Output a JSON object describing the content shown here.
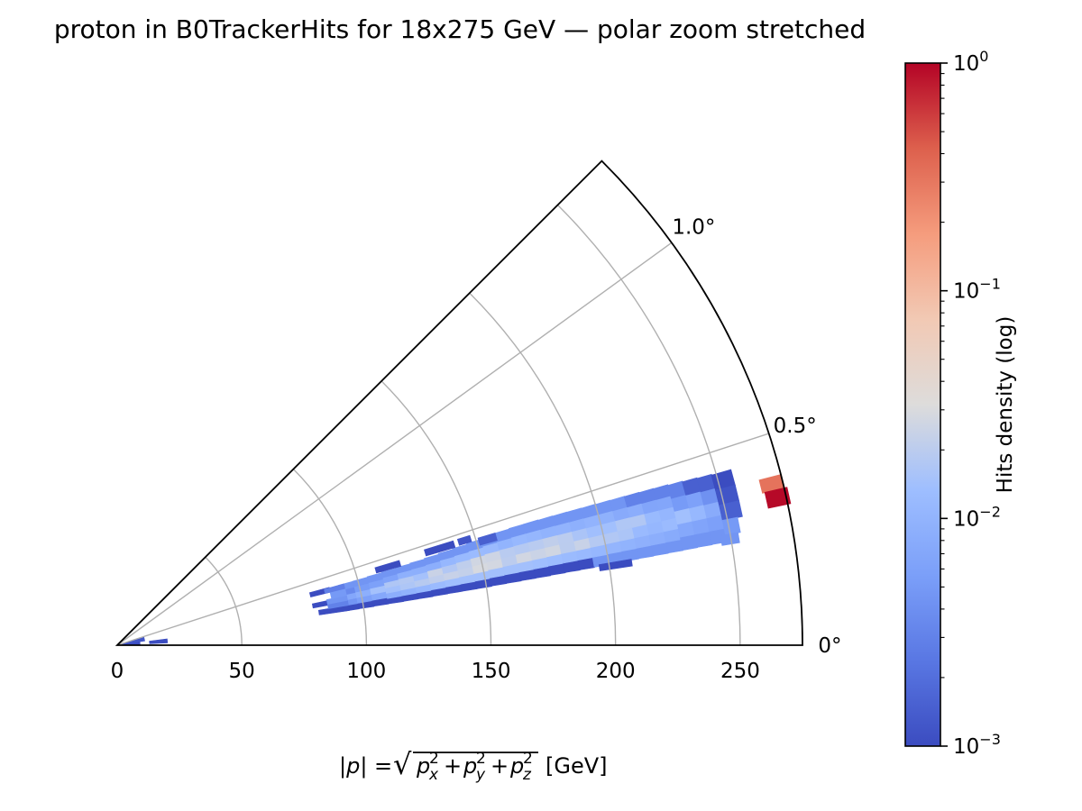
{
  "figure": {
    "background": "#ffffff"
  },
  "chart_data": {
    "type": "heatmap",
    "projection": "polar-wedge-stretched",
    "title": "proton in B0TrackerHits for 18x275 GeV — polar zoom stretched",
    "xlabel": {
      "prefix": "|p|",
      "equals": "=",
      "sqrt_terms": [
        [
          "p",
          "x",
          "2"
        ],
        [
          "p",
          "y",
          "2"
        ],
        [
          "p",
          "z",
          "2"
        ]
      ],
      "plus": "+",
      "unit": "[GeV]"
    },
    "r_axis": {
      "ticks": [
        0,
        50,
        100,
        150,
        200,
        250
      ],
      "max": 275,
      "unit": "GeV"
    },
    "theta_axis": {
      "ticks_deg": [
        0,
        0.5,
        1.0
      ],
      "tick_labels": [
        "0°",
        "0.5°",
        "1.0°"
      ],
      "max_deg": 1.25,
      "geometric_stretch": 36
    },
    "colorbar": {
      "label": "Hits density (log)",
      "scale": "log",
      "vmin": 0.001,
      "vmax": 1,
      "tick_exponents": [
        0,
        -1,
        -2,
        -3
      ],
      "colormap": "coolwarm",
      "stops": [
        [
          0.0,
          "#3b4cc0"
        ],
        [
          0.125,
          "#5977e3"
        ],
        [
          0.25,
          "#7b9ff9"
        ],
        [
          0.375,
          "#9ebeff"
        ],
        [
          0.5,
          "#dddcdb"
        ],
        [
          0.625,
          "#f2c9b4"
        ],
        [
          0.75,
          "#f59c7d"
        ],
        [
          0.875,
          "#dd604d"
        ],
        [
          1.0,
          "#b40426"
        ]
      ]
    },
    "heatmap": {
      "comment_units": "streak columns: r in GeV, theta in data degrees, density in normalized hits",
      "r_start": 80,
      "r_bin": 6,
      "theta_bin": 0.034,
      "theta_bottom": [
        0.235,
        0.236,
        0.237,
        0.238,
        0.24,
        0.241,
        0.242,
        0.243,
        0.245,
        0.246,
        0.247,
        0.248,
        0.25,
        0.251,
        0.252,
        0.253,
        0.255,
        0.256,
        0.257,
        0.258,
        0.26,
        0.261,
        0.262,
        0.263,
        0.264,
        0.265,
        0.266,
        0.267
      ],
      "theta_top": [
        0.43,
        0.428,
        0.42,
        0.422,
        0.425,
        0.428,
        0.431,
        0.434,
        0.438,
        0.442,
        0.446,
        0.45,
        0.455,
        0.458,
        0.46,
        0.46,
        0.459,
        0.458,
        0.457,
        0.456,
        0.455,
        0.454,
        0.453,
        0.452,
        0.451,
        0.449,
        0.447,
        0.445
      ],
      "core_density": [
        0.005,
        0.006,
        0.007,
        0.009,
        0.011,
        0.013,
        0.015,
        0.017,
        0.019,
        0.021,
        0.022,
        0.022,
        0.022,
        0.022,
        0.022,
        0.021,
        0.02,
        0.019,
        0.018,
        0.017,
        0.016,
        0.015,
        0.014,
        0.013,
        0.012,
        0.011,
        0.01,
        0.009
      ],
      "edge_density": 0.001,
      "top_density": 0.0045,
      "extra_cells": [
        [
          80,
          88,
          0.298,
          0.332,
          0.001
        ],
        [
          80,
          88,
          0.388,
          0.424,
          0.001
        ],
        [
          82,
          94,
          0.236,
          0.272,
          0.001
        ],
        [
          86,
          94,
          0.272,
          0.306,
          0.003
        ],
        [
          86,
          94,
          0.306,
          0.34,
          0.0045
        ],
        [
          88,
          94,
          0.34,
          0.388,
          0.005
        ],
        [
          86,
          94,
          0.388,
          0.42,
          0.0028
        ],
        [
          248,
          256,
          0.403,
          0.443,
          0.001
        ],
        [
          248,
          256,
          0.363,
          0.403,
          0.0012
        ],
        [
          248,
          256,
          0.323,
          0.363,
          0.0015
        ],
        [
          248,
          254,
          0.285,
          0.323,
          0.005
        ],
        [
          246,
          253,
          0.26,
          0.285,
          0.0045
        ],
        [
          108,
          118,
          0.432,
          0.464,
          0.001
        ],
        [
          129,
          141,
          0.448,
          0.479,
          0.001
        ],
        [
          143,
          148,
          0.452,
          0.48,
          0.0012
        ],
        [
          151,
          158,
          0.428,
          0.459,
          0.0015
        ],
        [
          196,
          209,
          0.243,
          0.263,
          0.001
        ],
        [
          2,
          9,
          0.03,
          0.25,
          0.001
        ],
        [
          2,
          11,
          0.25,
          0.47,
          0.0012
        ],
        [
          13,
          20,
          0.07,
          0.2,
          0.001
        ]
      ],
      "hotspot_cells": [
        [
          266,
          275,
          0.368,
          0.4,
          0.32
        ],
        [
          267,
          276,
          0.33,
          0.368,
          0.95
        ]
      ]
    }
  }
}
